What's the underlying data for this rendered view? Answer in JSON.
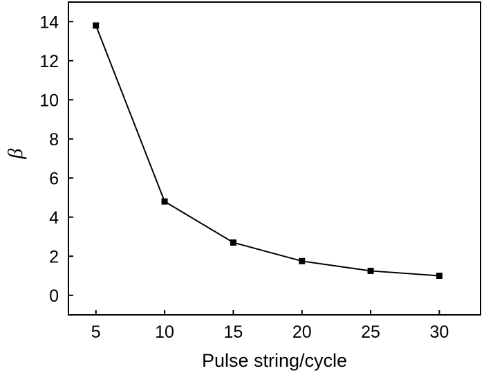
{
  "chart_data": {
    "type": "line",
    "title": "",
    "xlabel": "Pulse string/cycle",
    "ylabel": "β",
    "x": [
      5,
      10,
      15,
      20,
      25,
      30
    ],
    "series": [
      {
        "name": "β",
        "values": [
          13.8,
          4.8,
          2.7,
          1.75,
          1.25,
          1.0
        ]
      }
    ],
    "xlim": [
      3,
      33
    ],
    "ylim": [
      -1,
      15
    ],
    "xticks": [
      5,
      10,
      15,
      20,
      25,
      30
    ],
    "yticks": [
      0,
      2,
      4,
      6,
      8,
      10,
      12,
      14
    ],
    "grid": false,
    "marker": "square",
    "color": "#000000"
  }
}
